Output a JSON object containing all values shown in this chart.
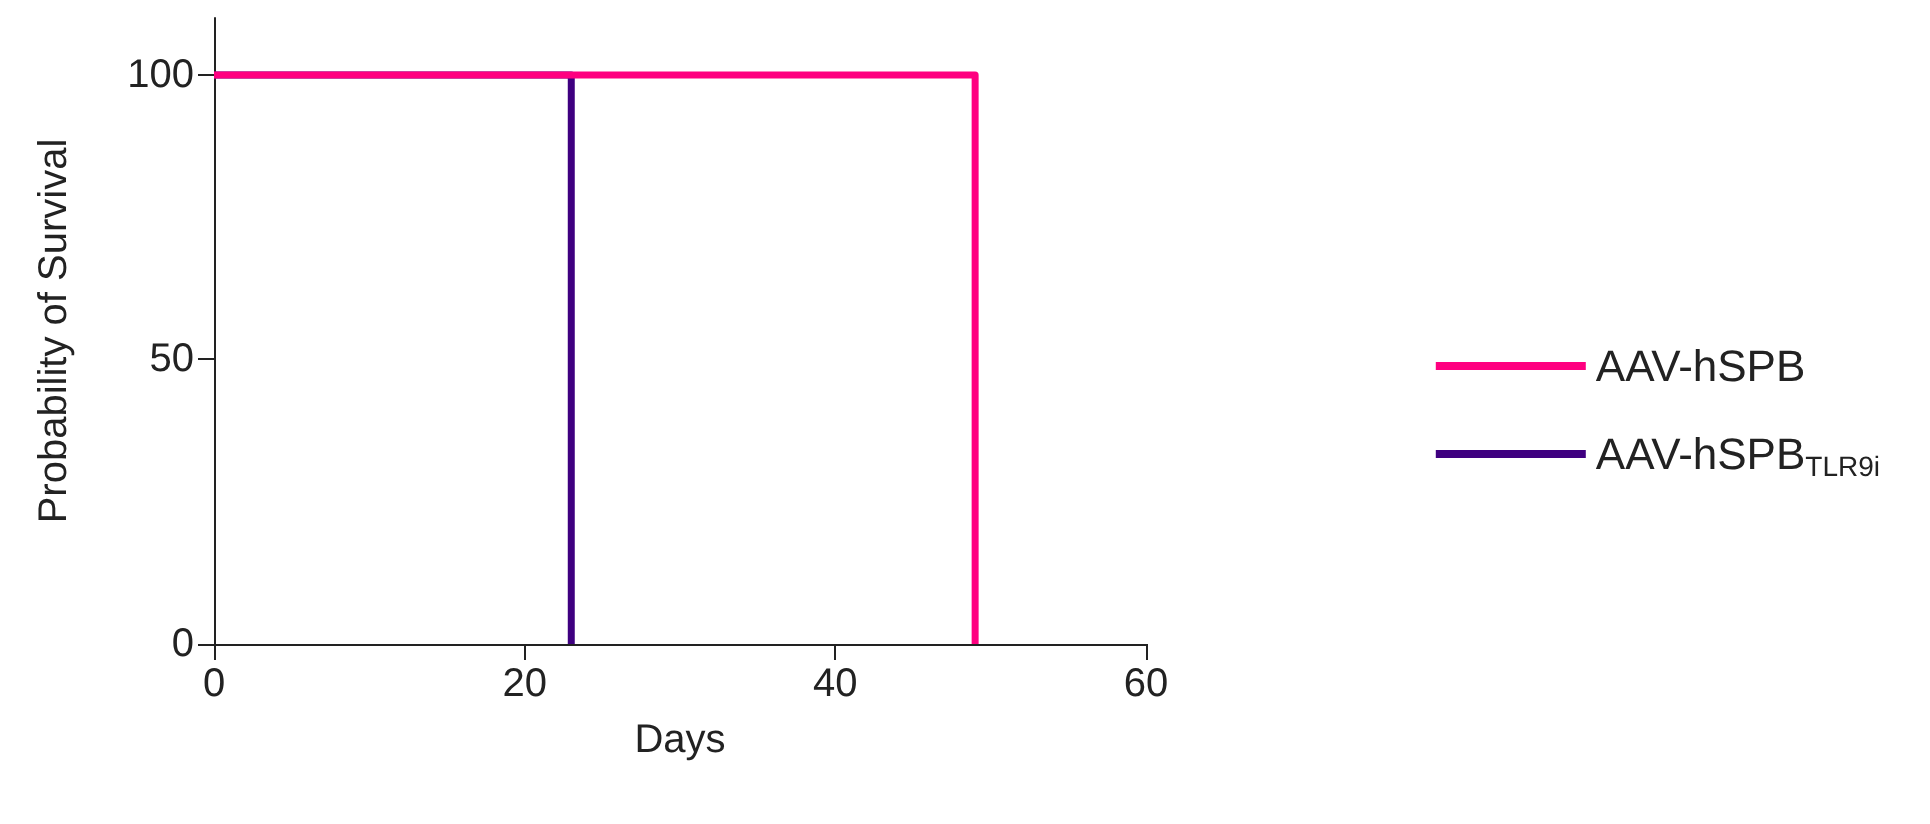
{
  "chart_data": {
    "type": "step",
    "xlabel": "Days",
    "ylabel": "Probability of Survival",
    "series": [
      {
        "name": "AAV-hSPB",
        "color": "#ff0080",
        "x": [
          0,
          49
        ],
        "values": [
          100,
          0
        ]
      },
      {
        "name": "AAV-hSPB$_{TLR9i}$",
        "color": "#3f0080",
        "x": [
          0,
          23
        ],
        "values": [
          100,
          0
        ]
      }
    ],
    "xlim": [
      0,
      60
    ],
    "xticks": [
      0,
      20,
      40,
      60
    ],
    "ylim": [
      0,
      110
    ],
    "yticks": [
      0,
      50,
      100
    ],
    "grid": false,
    "legend": "right"
  }
}
